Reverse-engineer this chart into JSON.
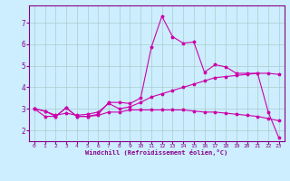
{
  "background_color": "#cceeff",
  "grid_color": "#aacccc",
  "line_color": "#cc00aa",
  "marker_color": "#cc00aa",
  "xlabel": "Windchill (Refroidissement éolien,°C)",
  "xlim": [
    -0.5,
    23.5
  ],
  "ylim": [
    1.5,
    7.8
  ],
  "yticks": [
    2,
    3,
    4,
    5,
    6,
    7
  ],
  "xticks": [
    0,
    1,
    2,
    3,
    4,
    5,
    6,
    7,
    8,
    9,
    10,
    11,
    12,
    13,
    14,
    15,
    16,
    17,
    18,
    19,
    20,
    21,
    22,
    23
  ],
  "line1_x": [
    0,
    1,
    2,
    3,
    4,
    5,
    6,
    7,
    8,
    9,
    10,
    11,
    12,
    13,
    14,
    15,
    16,
    17,
    18,
    19,
    20,
    21,
    22,
    23
  ],
  "line1_y": [
    3.0,
    2.9,
    2.65,
    3.05,
    2.65,
    2.65,
    2.7,
    2.85,
    2.85,
    2.95,
    2.95,
    2.95,
    2.95,
    2.95,
    2.95,
    2.9,
    2.85,
    2.85,
    2.8,
    2.75,
    2.7,
    2.65,
    2.55,
    2.45
  ],
  "line2_x": [
    0,
    1,
    2,
    3,
    4,
    5,
    6,
    7,
    8,
    9,
    10,
    11,
    12,
    13,
    14,
    15,
    16,
    17,
    18,
    19,
    20,
    21,
    22,
    23
  ],
  "line2_y": [
    3.0,
    2.65,
    2.65,
    3.05,
    2.65,
    2.65,
    2.75,
    3.3,
    3.3,
    3.25,
    3.5,
    5.85,
    7.3,
    6.35,
    6.05,
    6.1,
    4.7,
    5.05,
    4.95,
    4.65,
    4.65,
    4.65,
    2.85,
    1.65
  ],
  "line3_x": [
    0,
    1,
    2,
    3,
    4,
    5,
    6,
    7,
    8,
    9,
    10,
    11,
    12,
    13,
    14,
    15,
    16,
    17,
    18,
    19,
    20,
    21,
    22,
    23
  ],
  "line3_y": [
    3.0,
    2.9,
    2.7,
    2.8,
    2.7,
    2.75,
    2.85,
    3.25,
    3.0,
    3.1,
    3.3,
    3.55,
    3.7,
    3.85,
    4.0,
    4.15,
    4.3,
    4.45,
    4.5,
    4.55,
    4.6,
    4.65,
    4.65,
    4.6
  ]
}
